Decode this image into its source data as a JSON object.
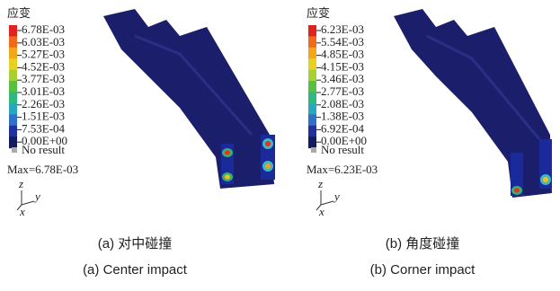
{
  "panels": [
    {
      "legend_title": "应变",
      "legend_labels": [
        "6.78E-03",
        "6.03E-03",
        "5.27E-03",
        "4.52E-03",
        "3.77E-03",
        "3.01E-03",
        "2.26E-03",
        "1.51E-03",
        "7.53E-04",
        "0.00E+00"
      ],
      "no_result": "No result",
      "max_label": "Max=6.78E-03",
      "axis_z": "z",
      "axis_y": "y",
      "axis_x": "x",
      "caption_cn": "(a) 对中碰撞",
      "caption_en": "(a) Center impact"
    },
    {
      "legend_title": "应变",
      "legend_labels": [
        "6.23E-03",
        "5.54E-03",
        "4.85E-03",
        "4.15E-03",
        "3.46E-03",
        "2.77E-03",
        "2.08E-03",
        "1.38E-03",
        "6.92E-04",
        "0.00E+00"
      ],
      "no_result": "No result",
      "max_label": "Max=6.23E-03",
      "axis_z": "z",
      "axis_y": "y",
      "axis_x": "x",
      "caption_cn": "(b) 角度碰撞",
      "caption_en": "(b) Corner impact"
    }
  ]
}
